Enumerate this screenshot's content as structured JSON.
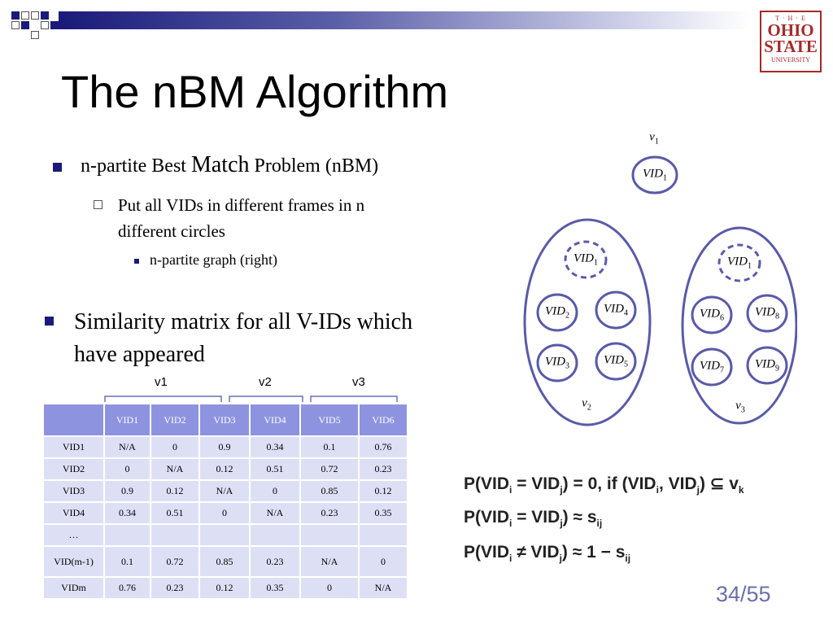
{
  "title": "The nBM Algorithm",
  "logo": {
    "top": "T · H · E",
    "line1": "OHIO",
    "line2": "STATE",
    "line3": "UNIVERSITY"
  },
  "bullets": {
    "b1_pre": "n-partite Best ",
    "b1_big": "Match",
    "b1_post": " Problem (nBM)",
    "b1_sub": "Put all VIDs in different frames in n",
    "b1_sub2": "different circles",
    "b1_subsub": "n-partite graph (right)",
    "b2_line1": "Similarity matrix for all V-IDs which",
    "b2_line2": "have appeared"
  },
  "graph": {
    "v1": "v",
    "v1_sub": "1",
    "v2": "v",
    "v2_sub": "2",
    "v3": "v",
    "v3_sub": "3",
    "vid_text": "VID",
    "nodes": [
      "1",
      "1",
      "2",
      "4",
      "3",
      "5",
      "1",
      "6",
      "8",
      "7",
      "9"
    ]
  },
  "groups": [
    "v1",
    "v2",
    "v3"
  ],
  "table": {
    "headers": [
      "",
      "VID1",
      "VID2",
      "VID3",
      "VID4",
      "VID5",
      "VID6"
    ],
    "rows": [
      [
        "VID1",
        "N/A",
        "0",
        "0.9",
        "0.34",
        "0.1",
        "0.76"
      ],
      [
        "VID2",
        "0",
        "N/A",
        "0.12",
        "0.51",
        "0.72",
        "0.23"
      ],
      [
        "VID3",
        "0.9",
        "0.12",
        "N/A",
        "0",
        "0.85",
        "0.12"
      ],
      [
        "VID4",
        "0.34",
        "0.51",
        "0",
        "N/A",
        "0.23",
        "0.35"
      ],
      [
        "…",
        "",
        "",
        "",
        "",
        "",
        ""
      ],
      [
        "VID(m-1)",
        "0.1",
        "0.72",
        "0.85",
        "0.23",
        "N/A",
        "0"
      ],
      [
        "VIDm",
        "0.76",
        "0.23",
        "0.12",
        "0.35",
        "0",
        "N/A"
      ]
    ]
  },
  "formulas": {
    "f1": "P(VID",
    "f1b": " = VID",
    "f1c": ") = 0, if (VID",
    "f1d": ", VID",
    "f1e": ")  ⊆ v",
    "f2": "P(VID",
    "f2b": " = VID",
    "f2c": ") ≈ s",
    "f3": "P(VID",
    "f3b": " ≠ VID",
    "f3c": ") ≈ 1 − s",
    "sub_i": "i",
    "sub_j": "j",
    "sub_k": "k",
    "sub_ij": "ij"
  },
  "page_number": "34/55",
  "colors": {
    "accent": "#1a1a7a",
    "circle": "#5a5aa8",
    "header_fill": "#8e93e0",
    "cell_fill": "#dde0f5",
    "logo": "#a52a2a"
  }
}
